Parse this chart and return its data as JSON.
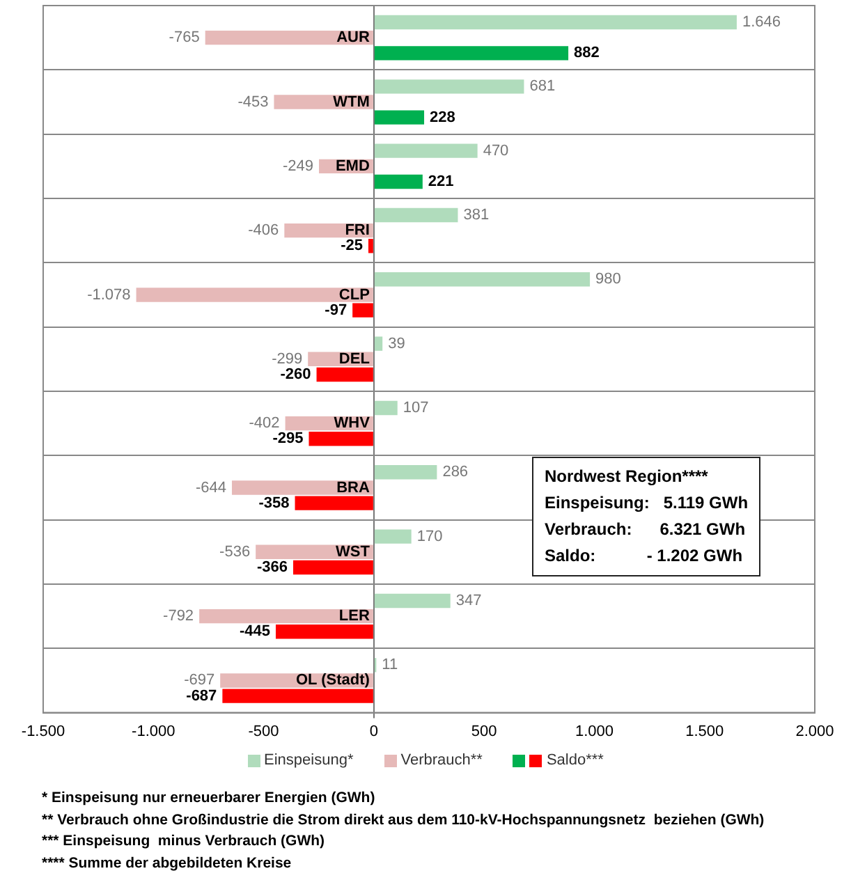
{
  "chart_data": {
    "type": "bar",
    "orientation": "horizontal",
    "categories": [
      "AUR",
      "WTM",
      "EMD",
      "FRI",
      "CLP",
      "DEL",
      "WHV",
      "BRA",
      "WST",
      "LER",
      "OL (Stadt)"
    ],
    "series": [
      {
        "name": "Einspeisung*",
        "color": "#b0dcbc",
        "values": [
          1646,
          681,
          470,
          381,
          980,
          39,
          107,
          286,
          170,
          347,
          11
        ],
        "value_labels": [
          "1.646",
          "681",
          "470",
          "381",
          "980",
          "39",
          "107",
          "286",
          "170",
          "347",
          "11"
        ]
      },
      {
        "name": "Verbrauch**",
        "color": "#e6b9b8",
        "values": [
          -765,
          -453,
          -249,
          -406,
          -1078,
          -299,
          -402,
          -644,
          -536,
          -792,
          -697
        ],
        "value_labels": [
          "-765",
          "-453",
          "-249",
          "-406",
          "-1.078",
          "-299",
          "-402",
          "-644",
          "-536",
          "-792",
          "-697"
        ]
      },
      {
        "name": "Saldo***",
        "colors": [
          "#00b050",
          "#00b050",
          "#00b050",
          "#ff0000",
          "#ff0000",
          "#ff0000",
          "#ff0000",
          "#ff0000",
          "#ff0000",
          "#ff0000",
          "#ff0000"
        ],
        "values": [
          882,
          228,
          221,
          -25,
          -97,
          -260,
          -295,
          -358,
          -366,
          -445,
          -687
        ],
        "value_labels": [
          "882",
          "228",
          "221",
          "-25",
          "-97",
          "-260",
          "-295",
          "-358",
          "-366",
          "-445",
          "-687"
        ]
      }
    ],
    "xlim": [
      -1500,
      2000
    ],
    "xticks": [
      {
        "value": -1500,
        "label": "-1.500"
      },
      {
        "value": -1000,
        "label": "-1.000"
      },
      -500,
      0,
      500,
      {
        "value": 1000,
        "label": "1.000"
      },
      {
        "value": 1500,
        "label": "1.500"
      },
      {
        "value": 2000,
        "label": "2.000"
      }
    ],
    "grid": "y",
    "legend": "bottom",
    "annotations": [
      "Nordwest Region****\nEinspeisung:   5.119 GWh\nVerbrauch:      6.321 GWh\nSaldo:           - 1.202 GWh",
      "* Einspeisung nur erneuerbarer Energien (GWh)",
      "** Verbrauch ohne Großindustrie die Strom direkt aus dem 110-kV-Hochspannungsnetz  beziehen (GWh)",
      "*** Einspeisung  minus Verbrauch (GWh)",
      "**** Summe der abgebildeten Kreise"
    ]
  }
}
